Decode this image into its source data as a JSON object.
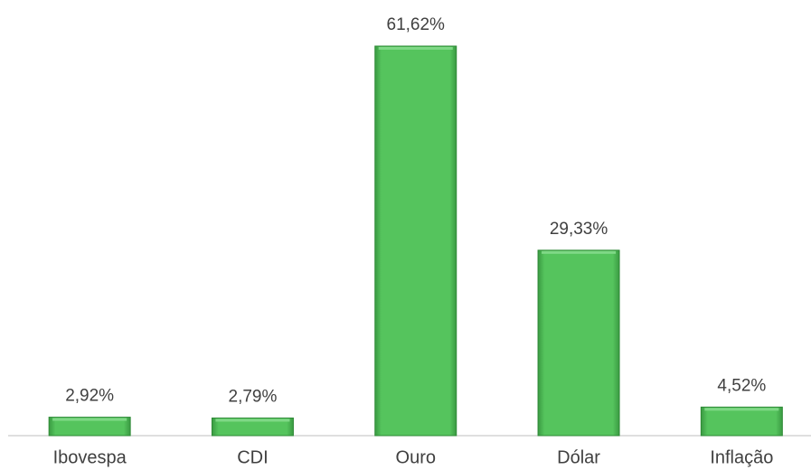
{
  "chart_data": {
    "type": "bar",
    "categories": [
      "Ibovespa",
      "CDI",
      "Ouro",
      "Dólar",
      "Inflação"
    ],
    "values": [
      2.92,
      2.79,
      61.62,
      29.33,
      4.52
    ],
    "value_labels": [
      "2,92%",
      "2,79%",
      "61,62%",
      "29,33%",
      "4,52%"
    ],
    "color": "#4dbb55"
  }
}
